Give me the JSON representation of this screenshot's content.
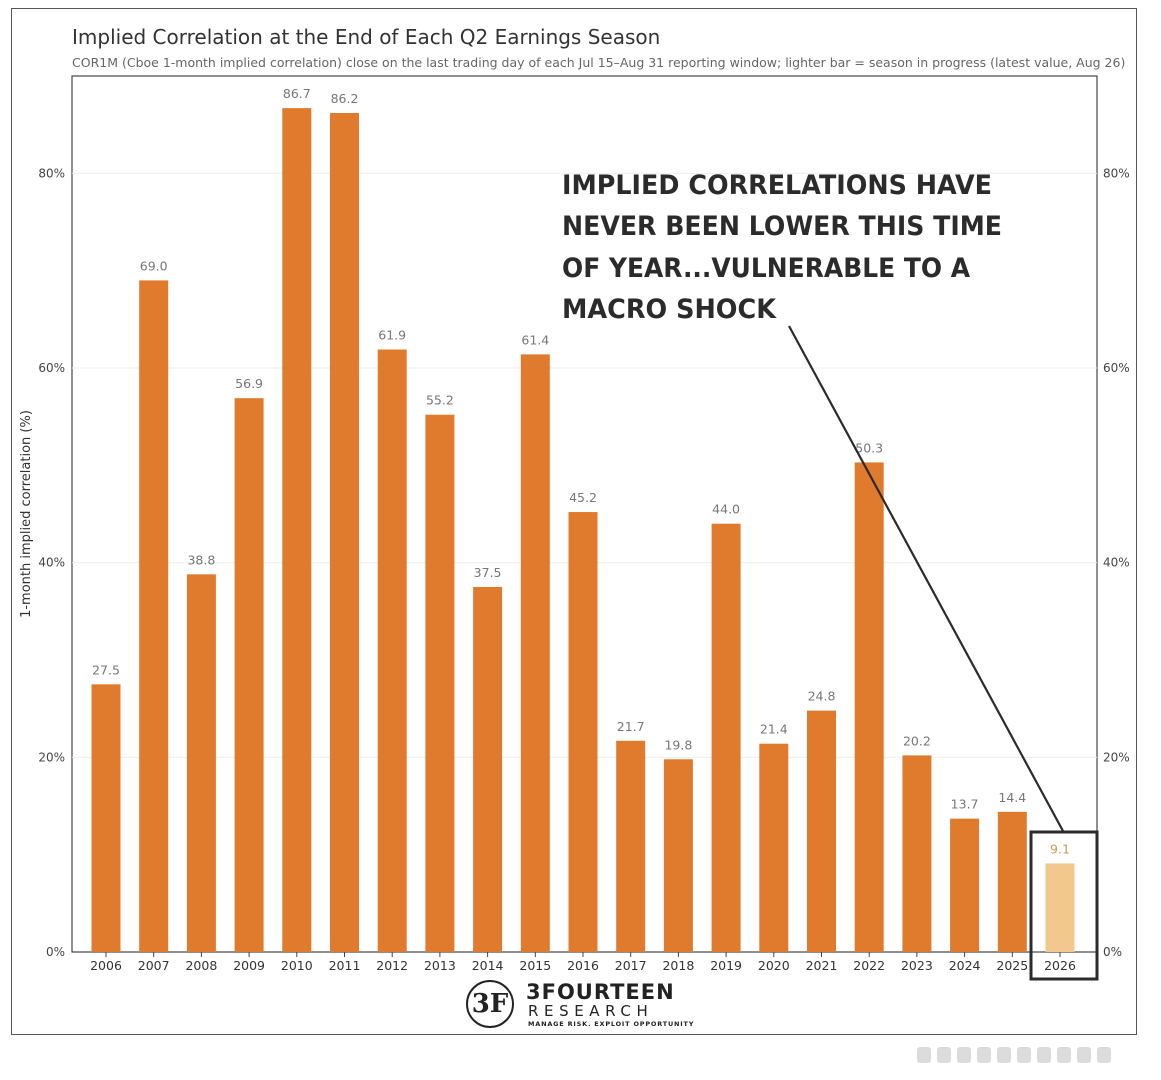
{
  "title": "Implied Correlation at the End of Each Q2 Earnings Season",
  "subtitle": "COR1M (Cboe 1-month implied correlation) close on the last trading day of each Jul 15–Aug 31 reporting window; lighter bar = season in progress (latest value, Aug 26)",
  "annotation": {
    "lines": [
      "IMPLIED CORRELATIONS HAVE",
      "NEVER BEEN LOWER THIS TIME",
      "OF YEAR...VULNERABLE TO A",
      "MACRO SHOCK"
    ]
  },
  "logo": {
    "mark": "3F",
    "name": "3FOURTEEN",
    "sub": "RESEARCH",
    "tagline": "MANAGE RISK. EXPLOIT OPPORTUNITY"
  },
  "colors": {
    "bar": "#e07b2e",
    "highlight_bar": "#f3c88f",
    "label": "#777777",
    "highlight_box": "#2b2b2b"
  },
  "chart_data": {
    "type": "bar",
    "title": "Implied Correlation at the End of Each Q2 Earnings Season",
    "xlabel": "",
    "ylabel": "1-month implied correlation (%)",
    "ylim": [
      0,
      90
    ],
    "yticks": [
      0,
      20,
      40,
      60,
      80
    ],
    "ytick_labels": [
      "0%",
      "20%",
      "40%",
      "60%",
      "80%"
    ],
    "grid": true,
    "categories": [
      "2006",
      "2007",
      "2008",
      "2009",
      "2010",
      "2011",
      "2012",
      "2013",
      "2014",
      "2015",
      "2016",
      "2017",
      "2018",
      "2019",
      "2020",
      "2021",
      "2022",
      "2023",
      "2024",
      "2025",
      "2026"
    ],
    "values": [
      27.5,
      69.0,
      38.8,
      56.9,
      86.7,
      86.2,
      61.9,
      55.2,
      37.5,
      61.4,
      45.2,
      21.7,
      19.8,
      44.0,
      21.4,
      24.8,
      50.3,
      20.2,
      13.7,
      14.4,
      9.1
    ],
    "value_labels": [
      "27.5",
      "69.0",
      "38.8",
      "56.9",
      "86.7",
      "86.2",
      "61.9",
      "55.2",
      "37.5",
      "61.4",
      "45.2",
      "21.7",
      "19.8",
      "44.0",
      "21.4",
      "24.8",
      "50.3",
      "20.2",
      "13.7",
      "14.4",
      "9.1"
    ],
    "highlight": "2026"
  }
}
